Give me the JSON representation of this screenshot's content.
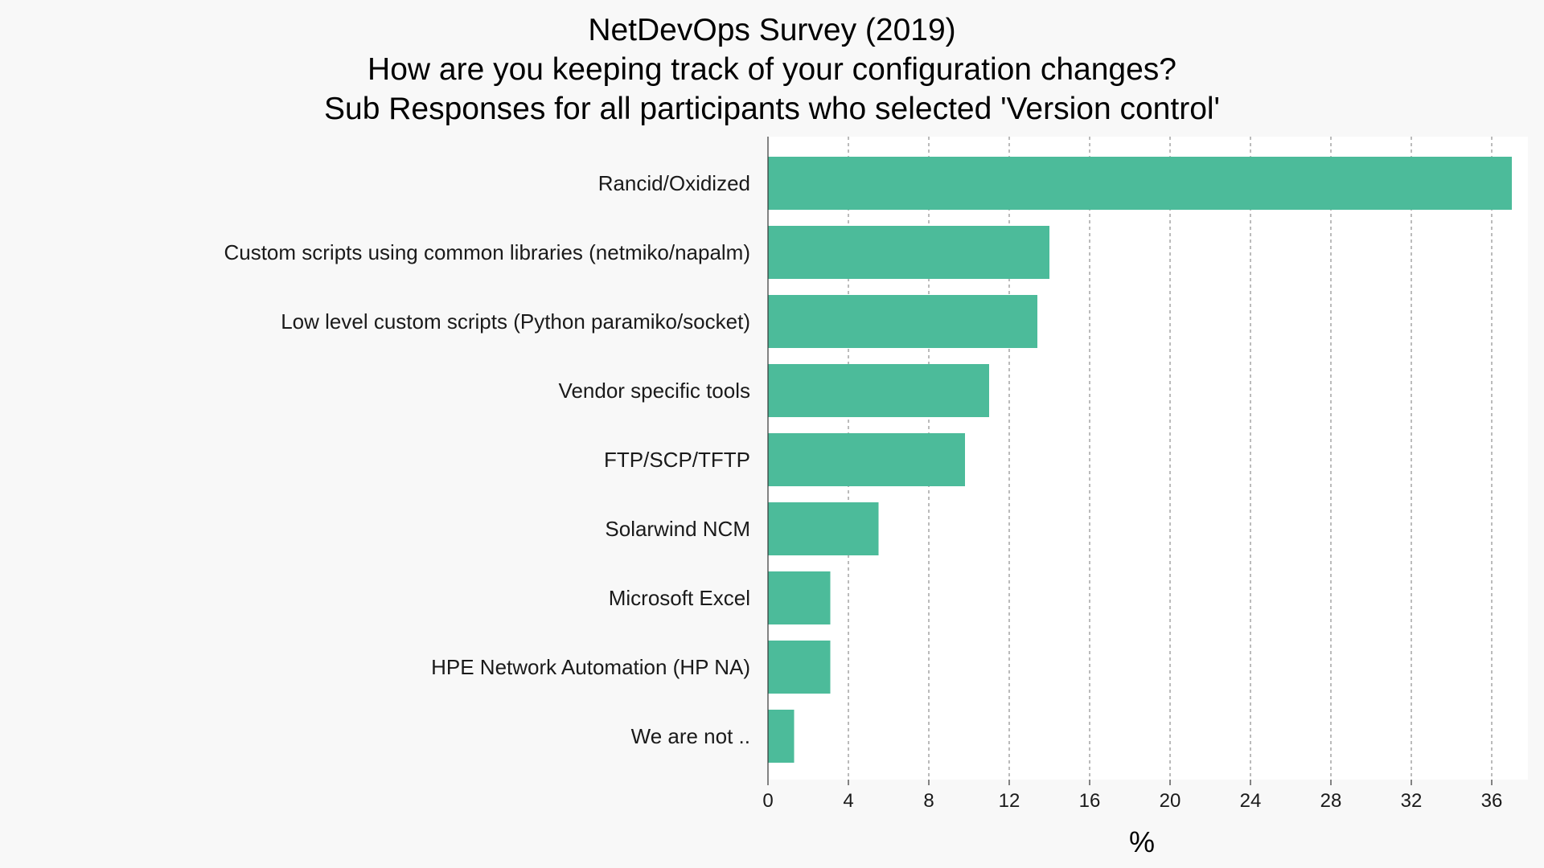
{
  "chart_data": {
    "type": "bar",
    "orientation": "horizontal",
    "title": [
      "NetDevOps Survey (2019)",
      "How are you keeping track of your configuration changes?",
      "Sub Responses for all participants who selected 'Version control'"
    ],
    "xlabel": "%",
    "ylabel": "",
    "categories": [
      "Rancid/Oxidized",
      "Custom scripts using common libraries (netmiko/napalm)",
      "Low level custom scripts (Python paramiko/socket)",
      "Vendor specific tools",
      "FTP/SCP/TFTP",
      "Solarwind NCM",
      "Microsoft Excel",
      "HPE Network Automation (HP NA)",
      "We are not .."
    ],
    "values": [
      37.0,
      14.0,
      13.4,
      11.0,
      9.8,
      5.5,
      3.1,
      3.1,
      1.3
    ],
    "xlim": [
      0,
      38
    ],
    "xticks": [
      0,
      4,
      8,
      12,
      16,
      20,
      24,
      28,
      32,
      36
    ],
    "grid": "vertical dashed",
    "colors": {
      "bar": "#4cbb9a",
      "background": "#f8f8f8",
      "plot_background": "#ffffff",
      "grid": "#777777",
      "axis": "#333333"
    }
  }
}
